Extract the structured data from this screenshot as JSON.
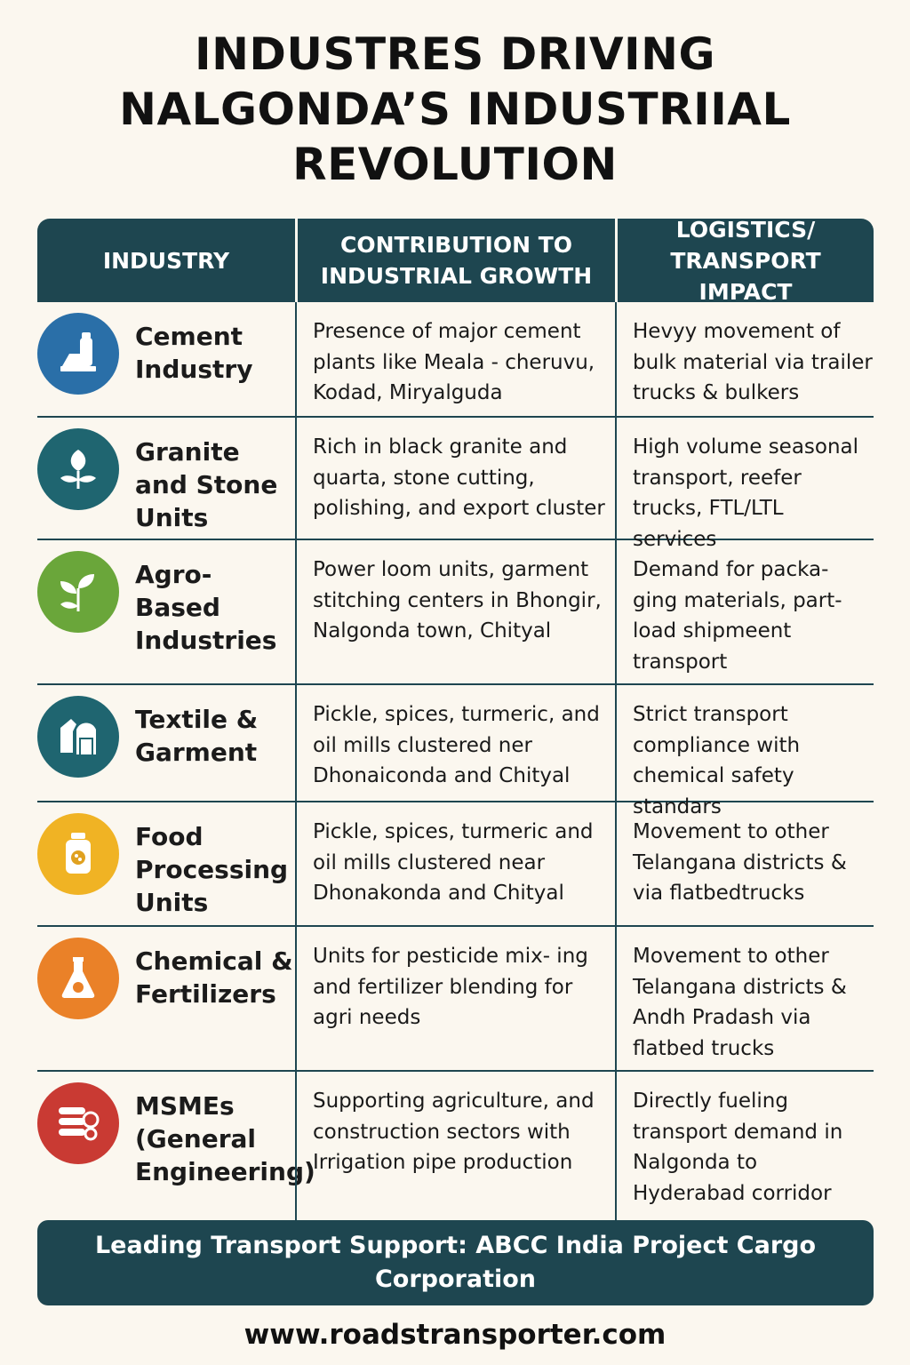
{
  "title": {
    "line1": "INDUSTRES DRIVING",
    "line2": "NALGONDA’S INDUSTRIIAL",
    "line3": "REVOLUTION"
  },
  "headers": {
    "industry": "INDUSTRY",
    "contribution": "CONTRIBUTION TO INDUSTRIAL GROWTH",
    "logistics": "LOGISTICS/ TRANSPORT IMPACT"
  },
  "rows": [
    {
      "industry": "Cement Industry",
      "icon": "cement-icon",
      "icon_color": "#2a6fa8",
      "contribution": "Presence of major cement plants like Meala - cheruvu, Kodad, Miryalguda",
      "logistics": "Hevyy movement of bulk material via trailer trucks & bulkers"
    },
    {
      "industry": "Granite and Stone Units",
      "icon": "leaf-icon",
      "icon_color": "#1f6570",
      "contribution": "Rich in black granite and quarta, stone cutting, polishing, and export cluster",
      "logistics": "High volume seasonal transport, reefer trucks, FTL/LTL services"
    },
    {
      "industry": "Agro-Based Industries",
      "icon": "sprout-icon",
      "icon_color": "#6aa63a",
      "contribution": "Power loom units, garment stitching centers in Bhongir, Nalgonda town, Chityal",
      "logistics": "Demand for packa- ging materials, part-load shipmeent transport"
    },
    {
      "industry": "Textile & Garment",
      "icon": "garment-icon",
      "icon_color": "#1f6570",
      "contribution": "Pickle, spices, turmeric, and oil mills clustered ner Dhonaiconda and Chityal",
      "logistics": "Strict transport compliance with chemical safety standars"
    },
    {
      "industry": "Food Processing Units",
      "icon": "jar-icon",
      "icon_color": "#f0b324",
      "contribution": "Pickle, spices, turmeric and oil mills clustered near Dhonakonda and Chityal",
      "logistics": "Movement to other Telangana districts & via flatbedtrucks"
    },
    {
      "industry": "Chemical & Fertilizers",
      "icon": "flask-icon",
      "icon_color": "#ea8128",
      "contribution": "Units for pesticide mix- ing and fertilizer blending for agri needs",
      "logistics": "Movement to other Telangana districts & Andh Pradash via flatbed trucks"
    },
    {
      "industry": "MSMEs (General Engineering)",
      "icon": "pipes-icon",
      "icon_color": "#c93a33",
      "contribution": "Supporting agriculture, and construction sectors with Irrigation pipe production",
      "logistics": "Directly fueling transport demand in Nalgonda to Hyderabad corridor"
    }
  ],
  "footer": {
    "support": "Leading Transport Support: ABCC India Project Cargo Corporation",
    "website": "www.roadstransporter.com"
  }
}
